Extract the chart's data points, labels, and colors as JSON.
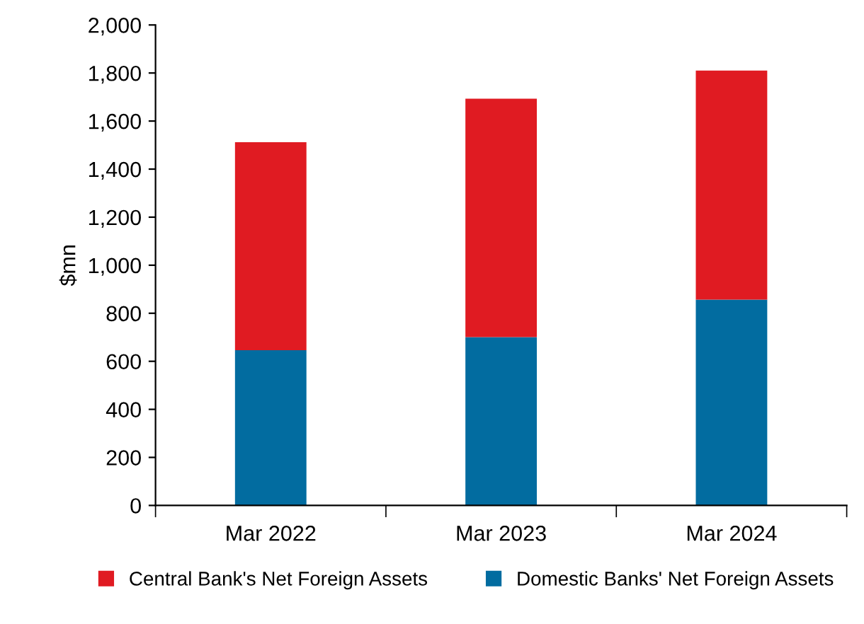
{
  "chart_data": {
    "type": "bar",
    "stacked": true,
    "ylabel": "$mn",
    "categories": [
      "Mar 2022",
      "Mar 2023",
      "Mar 2024"
    ],
    "series": [
      {
        "name": "Domestic Banks' Net Foreign Assets",
        "color": "#026ca0",
        "values": [
          646,
          701,
          857
        ]
      },
      {
        "name": "Central Bank's Net Foreign Assets",
        "color": "#e01b22",
        "values": [
          866,
          992,
          953
        ]
      }
    ],
    "ylim": [
      0,
      2000
    ],
    "yticks": [
      {
        "value": 0,
        "label": "0"
      },
      {
        "value": 200,
        "label": "200"
      },
      {
        "value": 400,
        "label": "400"
      },
      {
        "value": 600,
        "label": "600"
      },
      {
        "value": 800,
        "label": "800"
      },
      {
        "value": 1000,
        "label": "1,000"
      },
      {
        "value": 1200,
        "label": "1,200"
      },
      {
        "value": 1400,
        "label": "1,400"
      },
      {
        "value": 1600,
        "label": "1,600"
      },
      {
        "value": 1800,
        "label": "1,800"
      },
      {
        "value": 2000,
        "label": "2,000"
      }
    ],
    "grid": false,
    "legend": "bottom"
  }
}
